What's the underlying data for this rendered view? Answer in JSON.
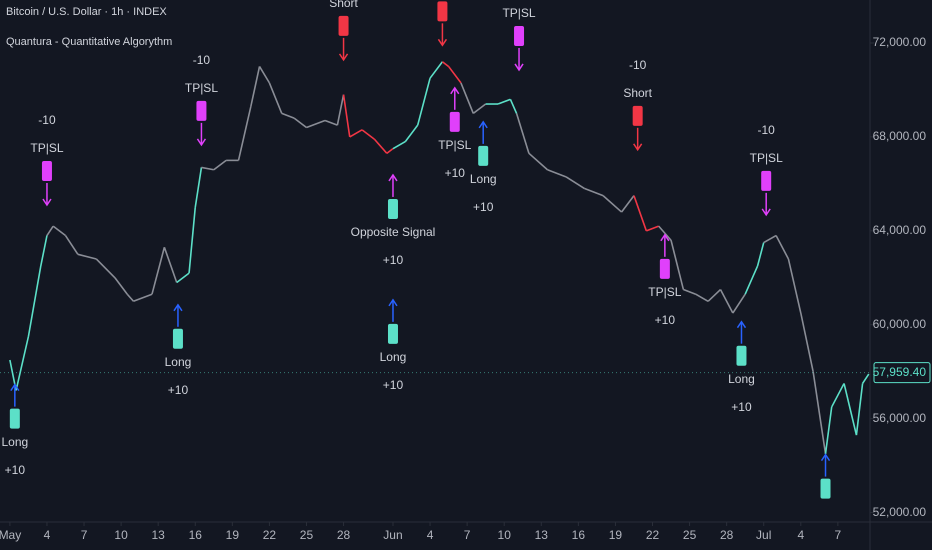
{
  "chart_data": {
    "type": "line",
    "title": "Bitcoin / U.S. Dollar · 1h · INDEX",
    "subtitle": "Quantura - Quantitative Algorythm",
    "xlim": [
      -0.8,
      69.6
    ],
    "ylim": [
      51600,
      73830
    ],
    "xticks": [
      {
        "value": 0,
        "label": "May"
      },
      {
        "value": 3,
        "label": "4"
      },
      {
        "value": 6,
        "label": "7"
      },
      {
        "value": 9,
        "label": "10"
      },
      {
        "value": 12,
        "label": "13"
      },
      {
        "value": 15,
        "label": "16"
      },
      {
        "value": 18,
        "label": "19"
      },
      {
        "value": 21,
        "label": "22"
      },
      {
        "value": 24,
        "label": "25"
      },
      {
        "value": 27,
        "label": "28"
      },
      {
        "value": 31,
        "label": "Jun"
      },
      {
        "value": 34,
        "label": "4"
      },
      {
        "value": 37,
        "label": "7"
      },
      {
        "value": 40,
        "label": "10"
      },
      {
        "value": 43,
        "label": "13"
      },
      {
        "value": 46,
        "label": "16"
      },
      {
        "value": 49,
        "label": "19"
      },
      {
        "value": 52,
        "label": "22"
      },
      {
        "value": 55,
        "label": "25"
      },
      {
        "value": 58,
        "label": "28"
      },
      {
        "value": 61,
        "label": "Jul"
      },
      {
        "value": 64,
        "label": "4"
      },
      {
        "value": 67,
        "label": "7"
      }
    ],
    "yticks": [
      {
        "value": 52000,
        "label": "52,000.00"
      },
      {
        "value": 56000,
        "label": "56,000.00"
      },
      {
        "value": 60000,
        "label": "60,000.00"
      },
      {
        "value": 64000,
        "label": "64,000.00"
      },
      {
        "value": 68000,
        "label": "68,000.00"
      },
      {
        "value": 72000,
        "label": "72,000.00"
      }
    ],
    "x": [
      0,
      0.5,
      1.5,
      2.5,
      3,
      3.5,
      4.5,
      5.5,
      7,
      8.5,
      9.5,
      10,
      11.5,
      12.5,
      13.5,
      14.5,
      15,
      15.5,
      16.5,
      17.5,
      18.5,
      19.5,
      20.2,
      21,
      22,
      23,
      24,
      25.5,
      26.5,
      27,
      27.5,
      28.5,
      29.5,
      30.5,
      31,
      32,
      33,
      34,
      35,
      35.5,
      36.5,
      37.5,
      38.5,
      39.5,
      40.5,
      41,
      42,
      43.5,
      45,
      46.5,
      48,
      49.5,
      50.5,
      51.5,
      52.5,
      53.5,
      54.5,
      55.5,
      56.5,
      57.5,
      58.5,
      59.5,
      60.5,
      61,
      62,
      63,
      64,
      65,
      66,
      66.5,
      67.5,
      68.5,
      69,
      69.5
    ],
    "values": [
      58500,
      57200,
      59500,
      62500,
      63800,
      64200,
      63800,
      63000,
      62800,
      62000,
      61300,
      61000,
      61300,
      63300,
      61800,
      62200,
      65000,
      66700,
      66600,
      67000,
      67000,
      69300,
      71000,
      70300,
      69000,
      68800,
      68400,
      68700,
      68500,
      69800,
      68000,
      68300,
      67900,
      67300,
      67500,
      67800,
      68500,
      70500,
      71200,
      71000,
      70300,
      69000,
      69400,
      69400,
      69600,
      69000,
      67300,
      66600,
      66300,
      65800,
      65500,
      64800,
      65500,
      64000,
      64200,
      63600,
      61500,
      61300,
      61000,
      61500,
      60500,
      61300,
      62500,
      63500,
      63800,
      62800,
      60500,
      58000,
      54500,
      56500,
      57500,
      55300,
      57500,
      57900
    ],
    "colors": [
      "#5ce0c8",
      "#5ce0c8",
      "#5ce0c8",
      "#5ce0c8",
      "#8a8d96",
      "#8a8d96",
      "#8a8d96",
      "#8a8d96",
      "#8a8d96",
      "#8a8d96",
      "#8a8d96",
      "#8a8d96",
      "#8a8d96",
      "#8a8d96",
      "#5ce0c8",
      "#5ce0c8",
      "#5ce0c8",
      "#8a8d96",
      "#8a8d96",
      "#8a8d96",
      "#8a8d96",
      "#8a8d96",
      "#8a8d96",
      "#8a8d96",
      "#8a8d96",
      "#8a8d96",
      "#8a8d96",
      "#8a8d96",
      "#8a8d96",
      "#f23645",
      "#f23645",
      "#f23645",
      "#f23645",
      "#f23645",
      "#5ce0c8",
      "#5ce0c8",
      "#5ce0c8",
      "#5ce0c8",
      "#f23645",
      "#f23645",
      "#8a8d96",
      "#8a8d96",
      "#5ce0c8",
      "#5ce0c8",
      "#5ce0c8",
      "#8a8d96",
      "#8a8d96",
      "#8a8d96",
      "#8a8d96",
      "#8a8d96",
      "#8a8d96",
      "#8a8d96",
      "#f23645",
      "#f23645",
      "#8a8d96",
      "#8a8d96",
      "#8a8d96",
      "#8a8d96",
      "#8a8d96",
      "#8a8d96",
      "#8a8d96",
      "#5ce0c8",
      "#5ce0c8",
      "#8a8d96",
      "#8a8d96",
      "#8a8d96",
      "#8a8d96",
      "#8a8d96",
      "#5ce0c8",
      "#5ce0c8",
      "#5ce0c8",
      "#5ce0c8",
      "#5ce0c8",
      "#5ce0c8"
    ],
    "last_price": {
      "value": 57959.4,
      "label": "57,959.40"
    },
    "annotations": [
      {
        "x": 0.4,
        "y": 57450,
        "direction": "up",
        "color": "#2962ff",
        "flag": "#5ce0c8",
        "lines": [
          "Long",
          "+10"
        ]
      },
      {
        "x": 3,
        "y": 65100,
        "direction": "down",
        "color": "#e040fb",
        "flag": "#e040fb",
        "lines": [
          "-10",
          "TP|SL"
        ]
      },
      {
        "x": 13.6,
        "y": 60850,
        "direction": "up",
        "color": "#2962ff",
        "flag": "#5ce0c8",
        "lines": [
          "Long",
          "+10"
        ]
      },
      {
        "x": 15.5,
        "y": 67660,
        "direction": "down",
        "color": "#e040fb",
        "flag": "#e040fb",
        "lines": [
          "-10",
          "TP|SL"
        ]
      },
      {
        "x": 27,
        "y": 71280,
        "direction": "down",
        "color": "#f23645",
        "flag": "#f23645",
        "lines": [
          "Short"
        ]
      },
      {
        "x": 31,
        "y": 66380,
        "direction": "up",
        "color": "#e040fb",
        "flag": "#5ce0c8",
        "lines": [
          "Opposite Signal",
          "+10"
        ]
      },
      {
        "x": 31,
        "y": 61060,
        "direction": "up",
        "color": "#2962ff",
        "flag": "#5ce0c8",
        "lines": [
          "Long",
          "+10"
        ]
      },
      {
        "x": 35,
        "y": 71900,
        "direction": "down",
        "color": "#f23645",
        "flag": "#f23645",
        "lines": []
      },
      {
        "x": 36,
        "y": 70090,
        "direction": "up",
        "color": "#e040fb",
        "flag": "#e040fb",
        "lines": [
          "TP|SL",
          "+10"
        ]
      },
      {
        "x": 41.2,
        "y": 70850,
        "direction": "down",
        "color": "#e040fb",
        "flag": "#e040fb",
        "lines": [
          "TP|SL"
        ]
      },
      {
        "x": 38.3,
        "y": 68640,
        "direction": "up",
        "color": "#2962ff",
        "flag": "#5ce0c8",
        "lines": [
          "Long",
          "+10"
        ]
      },
      {
        "x": 50.8,
        "y": 67450,
        "direction": "down",
        "color": "#f23645",
        "flag": "#f23645",
        "lines": [
          "-10",
          "Short"
        ]
      },
      {
        "x": 53,
        "y": 63830,
        "direction": "up",
        "color": "#e040fb",
        "flag": "#e040fb",
        "lines": [
          "TP|SL",
          "+10"
        ]
      },
      {
        "x": 59.2,
        "y": 60130,
        "direction": "up",
        "color": "#2962ff",
        "flag": "#5ce0c8",
        "lines": [
          "Long",
          "+10"
        ]
      },
      {
        "x": 61.2,
        "y": 64680,
        "direction": "down",
        "color": "#e040fb",
        "flag": "#e040fb",
        "lines": [
          "-10",
          "TP|SL"
        ]
      },
      {
        "x": 66,
        "y": 54470,
        "direction": "up",
        "color": "#2962ff",
        "flag": "#5ce0c8",
        "lines": []
      }
    ]
  }
}
